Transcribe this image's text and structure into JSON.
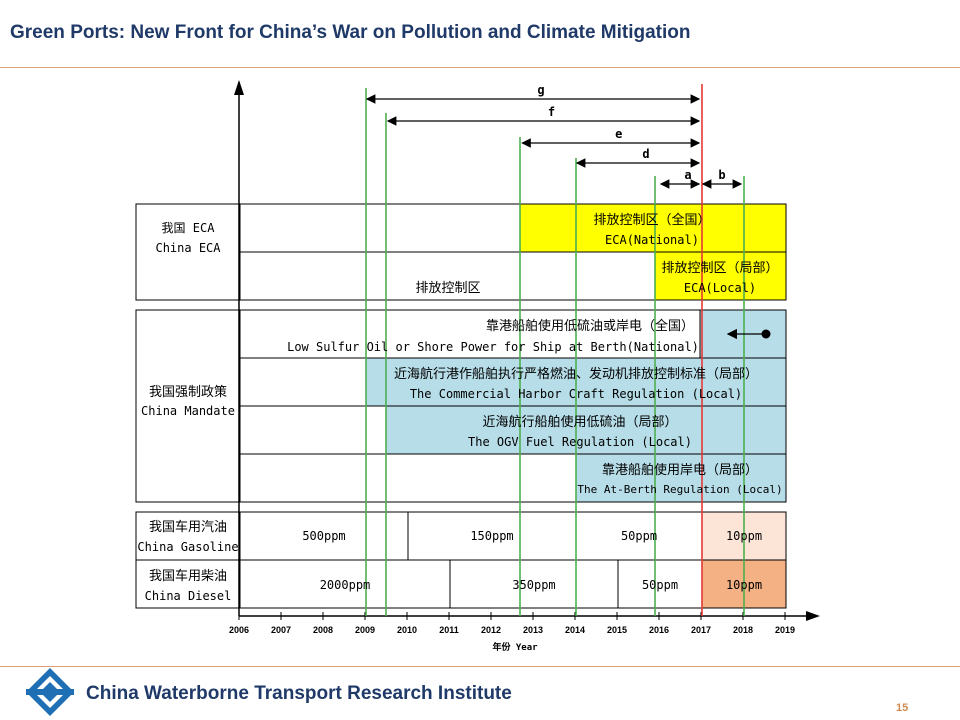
{
  "slide": {
    "title": "Green Ports: New Front for China’s War on Pollution and Climate Mitigation",
    "footer": "China Waterborne Transport Research Institute",
    "page_number": "15",
    "accent": "#1f3a68",
    "rule_color": "#d9a07a"
  },
  "timeline": {
    "years": [
      "2006",
      "2007",
      "2008",
      "2009",
      "2010",
      "2011",
      "2012",
      "2013",
      "2014",
      "2015",
      "2016",
      "2017",
      "2018",
      "2019"
    ],
    "axis_label": "年份 Year",
    "arrows": [
      {
        "label": "g",
        "from": 2009.0,
        "to": 2017.0
      },
      {
        "label": "f",
        "from": 2009.5,
        "to": 2017.0
      },
      {
        "label": "e",
        "from": 2012.7,
        "to": 2017.0
      },
      {
        "label": "d",
        "from": 2014.0,
        "to": 2017.0
      },
      {
        "label": "a",
        "from": 2016.0,
        "to": 2017.0
      },
      {
        "label": "b",
        "from": 2017.0,
        "to": 2018.0
      }
    ]
  },
  "groups": {
    "eca": {
      "zh": "我国 ECA",
      "en": "China ECA"
    },
    "mandate": {
      "zh": "我国强制政策",
      "en": "China Mandate"
    },
    "gasoline": {
      "zh": "我国车用汽油",
      "en": "China Gasoline"
    },
    "diesel": {
      "zh": "我国车用柴油",
      "en": "China Diesel"
    }
  },
  "eca_rows": {
    "national": {
      "zh": "排放控制区（全国）",
      "en": "ECA(National)"
    },
    "local": {
      "zh": "排放控制区（局部）",
      "en": "ECA(Local)"
    },
    "base": "排放控制区"
  },
  "mandate_rows": [
    {
      "zh": "靠港船舶使用低硫油或岸电（全国）",
      "en": "Low Sulfur Oil or Shore Power for Ship at Berth(National)"
    },
    {
      "zh": "近海航行港作船舶执行严格燃油、发动机排放控制标准（局部）",
      "en": "The Commercial Harbor Craft Regulation (Local)"
    },
    {
      "zh": "近海航行船舶使用低硫油（局部）",
      "en": "The OGV Fuel Regulation (Local)"
    },
    {
      "zh": "靠港船舶使用岸电（局部）",
      "en": "The At-Berth Regulation (Local)"
    }
  ],
  "gasoline": [
    "500ppm",
    "150ppm",
    "50ppm",
    "10ppm"
  ],
  "diesel": [
    "2000ppm",
    "350ppm",
    "50ppm",
    "10ppm"
  ],
  "colors": {
    "eca_yellow": "#ffff00",
    "mandate_blue": "#b7dde8",
    "gasoline_10": "#fce4d6",
    "diesel_10": "#f4b183",
    "guide_green": "#4caf50",
    "guide_red": "#e53935"
  }
}
